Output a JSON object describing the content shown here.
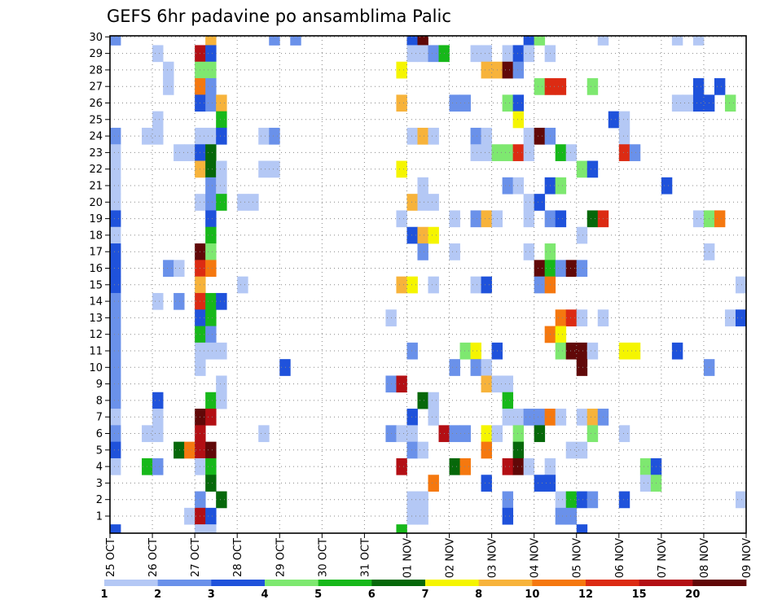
{
  "chart_data": {
    "type": "heatmap",
    "title": "GEFS 6hr padavine po ansamblima Palic",
    "x_tick_labels": [
      "25 OCT",
      "26 OCT",
      "27 OCT",
      "28 OCT",
      "29 OCT",
      "30 OCT",
      "31 OCT",
      "01 NOV",
      "02 NOV",
      "03 NOV",
      "04 NOV",
      "05 NOV",
      "06 NOV",
      "07 NOV",
      "08 NOV",
      "09 NOV"
    ],
    "y_tick_labels": [
      "1",
      "2",
      "3",
      "4",
      "5",
      "6",
      "7",
      "8",
      "9",
      "10",
      "11",
      "12",
      "13",
      "14",
      "15",
      "16",
      "17",
      "18",
      "19",
      "20",
      "21",
      "22",
      "23",
      "24",
      "25",
      "26",
      "27",
      "28",
      "29",
      "30"
    ],
    "x_steps_per_day": 4,
    "y_members": 30,
    "colorbar": {
      "labels": [
        "1",
        "2",
        "3",
        "4",
        "5",
        "6",
        "7",
        "8",
        "10",
        "12",
        "15",
        "20"
      ],
      "colors": [
        "#b4c8f5",
        "#6a91ea",
        "#1f52db",
        "#7ee870",
        "#17b81a",
        "#06680a",
        "#f5f500",
        "#f7b33b",
        "#f5780f",
        "#dc2b13",
        "#b30f14",
        "#610808"
      ]
    },
    "cells": [
      [
        0,
        30,
        2
      ],
      [
        9,
        30,
        8
      ],
      [
        15,
        30,
        2
      ],
      [
        17,
        30,
        2
      ],
      [
        28,
        30,
        3
      ],
      [
        29,
        30,
        12
      ],
      [
        39,
        30,
        3
      ],
      [
        40,
        30,
        4
      ],
      [
        46,
        30,
        1
      ],
      [
        53,
        30,
        1
      ],
      [
        55,
        30,
        1
      ],
      [
        4,
        29,
        1
      ],
      [
        8,
        29,
        11
      ],
      [
        9,
        29,
        3
      ],
      [
        28,
        29,
        1
      ],
      [
        29,
        29,
        1
      ],
      [
        30,
        29,
        2
      ],
      [
        31,
        29,
        5
      ],
      [
        34,
        29,
        1
      ],
      [
        35,
        29,
        1
      ],
      [
        37,
        29,
        1
      ],
      [
        38,
        29,
        3
      ],
      [
        39,
        29,
        1
      ],
      [
        41,
        29,
        1
      ],
      [
        5,
        28,
        1
      ],
      [
        8,
        28,
        4
      ],
      [
        9,
        28,
        4
      ],
      [
        27,
        28,
        7
      ],
      [
        35,
        28,
        8
      ],
      [
        36,
        28,
        8
      ],
      [
        37,
        28,
        12
      ],
      [
        38,
        28,
        2
      ],
      [
        5,
        27,
        1
      ],
      [
        8,
        27,
        9
      ],
      [
        9,
        27,
        2
      ],
      [
        40,
        27,
        4
      ],
      [
        41,
        27,
        10
      ],
      [
        42,
        27,
        10
      ],
      [
        45,
        27,
        4
      ],
      [
        55,
        27,
        3
      ],
      [
        57,
        27,
        3
      ],
      [
        8,
        26,
        3
      ],
      [
        9,
        26,
        2
      ],
      [
        10,
        26,
        8
      ],
      [
        27,
        26,
        8
      ],
      [
        32,
        26,
        2
      ],
      [
        33,
        26,
        2
      ],
      [
        37,
        26,
        4
      ],
      [
        38,
        26,
        3
      ],
      [
        53,
        26,
        1
      ],
      [
        54,
        26,
        1
      ],
      [
        55,
        26,
        3
      ],
      [
        56,
        26,
        3
      ],
      [
        58,
        26,
        4
      ],
      [
        4,
        25,
        1
      ],
      [
        10,
        25,
        5
      ],
      [
        38,
        25,
        7
      ],
      [
        47,
        25,
        3
      ],
      [
        48,
        25,
        1
      ],
      [
        0,
        24,
        2
      ],
      [
        3,
        24,
        1
      ],
      [
        4,
        24,
        1
      ],
      [
        8,
        24,
        1
      ],
      [
        9,
        24,
        1
      ],
      [
        10,
        24,
        3
      ],
      [
        14,
        24,
        1
      ],
      [
        15,
        24,
        2
      ],
      [
        28,
        24,
        1
      ],
      [
        29,
        24,
        8
      ],
      [
        30,
        24,
        1
      ],
      [
        34,
        24,
        2
      ],
      [
        35,
        24,
        1
      ],
      [
        39,
        24,
        1
      ],
      [
        40,
        24,
        12
      ],
      [
        41,
        24,
        2
      ],
      [
        48,
        24,
        1
      ],
      [
        0,
        23,
        1
      ],
      [
        6,
        23,
        1
      ],
      [
        7,
        23,
        1
      ],
      [
        8,
        23,
        3
      ],
      [
        9,
        23,
        6
      ],
      [
        34,
        23,
        1
      ],
      [
        35,
        23,
        1
      ],
      [
        36,
        23,
        4
      ],
      [
        37,
        23,
        4
      ],
      [
        38,
        23,
        10
      ],
      [
        39,
        23,
        1
      ],
      [
        42,
        23,
        5
      ],
      [
        43,
        23,
        1
      ],
      [
        48,
        23,
        10
      ],
      [
        49,
        23,
        2
      ],
      [
        0,
        22,
        1
      ],
      [
        8,
        22,
        8
      ],
      [
        9,
        22,
        6
      ],
      [
        10,
        22,
        1
      ],
      [
        14,
        22,
        1
      ],
      [
        15,
        22,
        1
      ],
      [
        27,
        22,
        7
      ],
      [
        44,
        22,
        4
      ],
      [
        45,
        22,
        3
      ],
      [
        0,
        21,
        1
      ],
      [
        9,
        21,
        2
      ],
      [
        10,
        21,
        1
      ],
      [
        29,
        21,
        1
      ],
      [
        37,
        21,
        2
      ],
      [
        38,
        21,
        1
      ],
      [
        41,
        21,
        3
      ],
      [
        42,
        21,
        4
      ],
      [
        52,
        21,
        3
      ],
      [
        0,
        20,
        1
      ],
      [
        8,
        20,
        1
      ],
      [
        9,
        20,
        2
      ],
      [
        10,
        20,
        5
      ],
      [
        12,
        20,
        1
      ],
      [
        13,
        20,
        1
      ],
      [
        28,
        20,
        8
      ],
      [
        29,
        20,
        1
      ],
      [
        30,
        20,
        1
      ],
      [
        39,
        20,
        1
      ],
      [
        40,
        20,
        3
      ],
      [
        0,
        19,
        3
      ],
      [
        9,
        19,
        3
      ],
      [
        27,
        19,
        1
      ],
      [
        32,
        19,
        1
      ],
      [
        34,
        19,
        2
      ],
      [
        35,
        19,
        8
      ],
      [
        36,
        19,
        1
      ],
      [
        39,
        19,
        1
      ],
      [
        41,
        19,
        2
      ],
      [
        42,
        19,
        3
      ],
      [
        45,
        19,
        6
      ],
      [
        46,
        19,
        10
      ],
      [
        55,
        19,
        1
      ],
      [
        56,
        19,
        4
      ],
      [
        57,
        19,
        9
      ],
      [
        0,
        18,
        1
      ],
      [
        9,
        18,
        5
      ],
      [
        28,
        18,
        3
      ],
      [
        29,
        18,
        8
      ],
      [
        30,
        18,
        7
      ],
      [
        44,
        18,
        1
      ],
      [
        0,
        17,
        3
      ],
      [
        8,
        17,
        12
      ],
      [
        9,
        17,
        4
      ],
      [
        29,
        17,
        2
      ],
      [
        32,
        17,
        1
      ],
      [
        39,
        17,
        1
      ],
      [
        41,
        17,
        4
      ],
      [
        56,
        17,
        1
      ],
      [
        0,
        16,
        3
      ],
      [
        5,
        16,
        2
      ],
      [
        6,
        16,
        1
      ],
      [
        8,
        16,
        10
      ],
      [
        9,
        16,
        9
      ],
      [
        40,
        16,
        12
      ],
      [
        41,
        16,
        5
      ],
      [
        42,
        16,
        2
      ],
      [
        43,
        16,
        12
      ],
      [
        44,
        16,
        2
      ],
      [
        0,
        15,
        3
      ],
      [
        8,
        15,
        8
      ],
      [
        12,
        15,
        1
      ],
      [
        27,
        15,
        8
      ],
      [
        28,
        15,
        7
      ],
      [
        30,
        15,
        1
      ],
      [
        34,
        15,
        1
      ],
      [
        35,
        15,
        3
      ],
      [
        40,
        15,
        2
      ],
      [
        41,
        15,
        9
      ],
      [
        59,
        15,
        1
      ],
      [
        0,
        14,
        2
      ],
      [
        4,
        14,
        1
      ],
      [
        6,
        14,
        2
      ],
      [
        8,
        14,
        10
      ],
      [
        9,
        14,
        5
      ],
      [
        10,
        14,
        3
      ],
      [
        0,
        13,
        2
      ],
      [
        8,
        13,
        3
      ],
      [
        9,
        13,
        5
      ],
      [
        26,
        13,
        1
      ],
      [
        42,
        13,
        9
      ],
      [
        43,
        13,
        10
      ],
      [
        44,
        13,
        1
      ],
      [
        46,
        13,
        1
      ],
      [
        58,
        13,
        1
      ],
      [
        59,
        13,
        3
      ],
      [
        0,
        12,
        2
      ],
      [
        8,
        12,
        5
      ],
      [
        9,
        12,
        2
      ],
      [
        41,
        12,
        9
      ],
      [
        42,
        12,
        7
      ],
      [
        0,
        11,
        2
      ],
      [
        8,
        11,
        1
      ],
      [
        9,
        11,
        1
      ],
      [
        10,
        11,
        1
      ],
      [
        28,
        11,
        2
      ],
      [
        33,
        11,
        4
      ],
      [
        34,
        11,
        7
      ],
      [
        36,
        11,
        3
      ],
      [
        42,
        11,
        4
      ],
      [
        43,
        11,
        12
      ],
      [
        44,
        11,
        12
      ],
      [
        45,
        11,
        1
      ],
      [
        48,
        11,
        7
      ],
      [
        49,
        11,
        7
      ],
      [
        53,
        11,
        3
      ],
      [
        0,
        10,
        2
      ],
      [
        8,
        10,
        1
      ],
      [
        16,
        10,
        3
      ],
      [
        32,
        10,
        2
      ],
      [
        34,
        10,
        2
      ],
      [
        35,
        10,
        1
      ],
      [
        44,
        10,
        12
      ],
      [
        56,
        10,
        2
      ],
      [
        0,
        9,
        2
      ],
      [
        10,
        9,
        1
      ],
      [
        26,
        9,
        2
      ],
      [
        27,
        9,
        11
      ],
      [
        35,
        9,
        8
      ],
      [
        36,
        9,
        1
      ],
      [
        37,
        9,
        1
      ],
      [
        0,
        8,
        2
      ],
      [
        4,
        8,
        3
      ],
      [
        9,
        8,
        5
      ],
      [
        10,
        8,
        1
      ],
      [
        29,
        8,
        6
      ],
      [
        30,
        8,
        1
      ],
      [
        37,
        8,
        5
      ],
      [
        0,
        7,
        1
      ],
      [
        4,
        7,
        1
      ],
      [
        8,
        7,
        12
      ],
      [
        9,
        7,
        11
      ],
      [
        28,
        7,
        3
      ],
      [
        30,
        7,
        1
      ],
      [
        37,
        7,
        1
      ],
      [
        38,
        7,
        1
      ],
      [
        39,
        7,
        2
      ],
      [
        40,
        7,
        2
      ],
      [
        41,
        7,
        9
      ],
      [
        42,
        7,
        1
      ],
      [
        44,
        7,
        1
      ],
      [
        45,
        7,
        8
      ],
      [
        46,
        7,
        2
      ],
      [
        0,
        6,
        2
      ],
      [
        3,
        6,
        1
      ],
      [
        4,
        6,
        1
      ],
      [
        8,
        6,
        11
      ],
      [
        14,
        6,
        1
      ],
      [
        26,
        6,
        2
      ],
      [
        27,
        6,
        1
      ],
      [
        28,
        6,
        1
      ],
      [
        31,
        6,
        11
      ],
      [
        32,
        6,
        2
      ],
      [
        33,
        6,
        2
      ],
      [
        35,
        6,
        7
      ],
      [
        36,
        6,
        1
      ],
      [
        38,
        6,
        4
      ],
      [
        40,
        6,
        6
      ],
      [
        45,
        6,
        4
      ],
      [
        48,
        6,
        1
      ],
      [
        0,
        5,
        3
      ],
      [
        6,
        5,
        6
      ],
      [
        7,
        5,
        9
      ],
      [
        8,
        5,
        11
      ],
      [
        9,
        5,
        12
      ],
      [
        28,
        5,
        2
      ],
      [
        29,
        5,
        1
      ],
      [
        35,
        5,
        9
      ],
      [
        38,
        5,
        6
      ],
      [
        43,
        5,
        1
      ],
      [
        44,
        5,
        1
      ],
      [
        0,
        4,
        1
      ],
      [
        3,
        4,
        5
      ],
      [
        4,
        4,
        2
      ],
      [
        8,
        4,
        1
      ],
      [
        9,
        4,
        5
      ],
      [
        27,
        4,
        11
      ],
      [
        32,
        4,
        6
      ],
      [
        33,
        4,
        9
      ],
      [
        37,
        4,
        11
      ],
      [
        38,
        4,
        12
      ],
      [
        39,
        4,
        1
      ],
      [
        41,
        4,
        1
      ],
      [
        50,
        4,
        4
      ],
      [
        51,
        4,
        3
      ],
      [
        9,
        3,
        6
      ],
      [
        30,
        3,
        9
      ],
      [
        35,
        3,
        3
      ],
      [
        40,
        3,
        3
      ],
      [
        41,
        3,
        3
      ],
      [
        50,
        3,
        1
      ],
      [
        51,
        3,
        4
      ],
      [
        8,
        2,
        2
      ],
      [
        10,
        2,
        6
      ],
      [
        28,
        2,
        1
      ],
      [
        29,
        2,
        1
      ],
      [
        37,
        2,
        2
      ],
      [
        42,
        2,
        1
      ],
      [
        43,
        2,
        5
      ],
      [
        44,
        2,
        3
      ],
      [
        45,
        2,
        2
      ],
      [
        48,
        2,
        3
      ],
      [
        59,
        2,
        1
      ],
      [
        7,
        1,
        1
      ],
      [
        8,
        1,
        11
      ],
      [
        9,
        1,
        3
      ],
      [
        28,
        1,
        1
      ],
      [
        29,
        1,
        1
      ],
      [
        37,
        1,
        3
      ],
      [
        42,
        1,
        2
      ],
      [
        43,
        1,
        2
      ],
      [
        0,
        0,
        3
      ],
      [
        8,
        0,
        1
      ],
      [
        9,
        0,
        1
      ],
      [
        27,
        0,
        5
      ],
      [
        44,
        0,
        3
      ]
    ]
  }
}
